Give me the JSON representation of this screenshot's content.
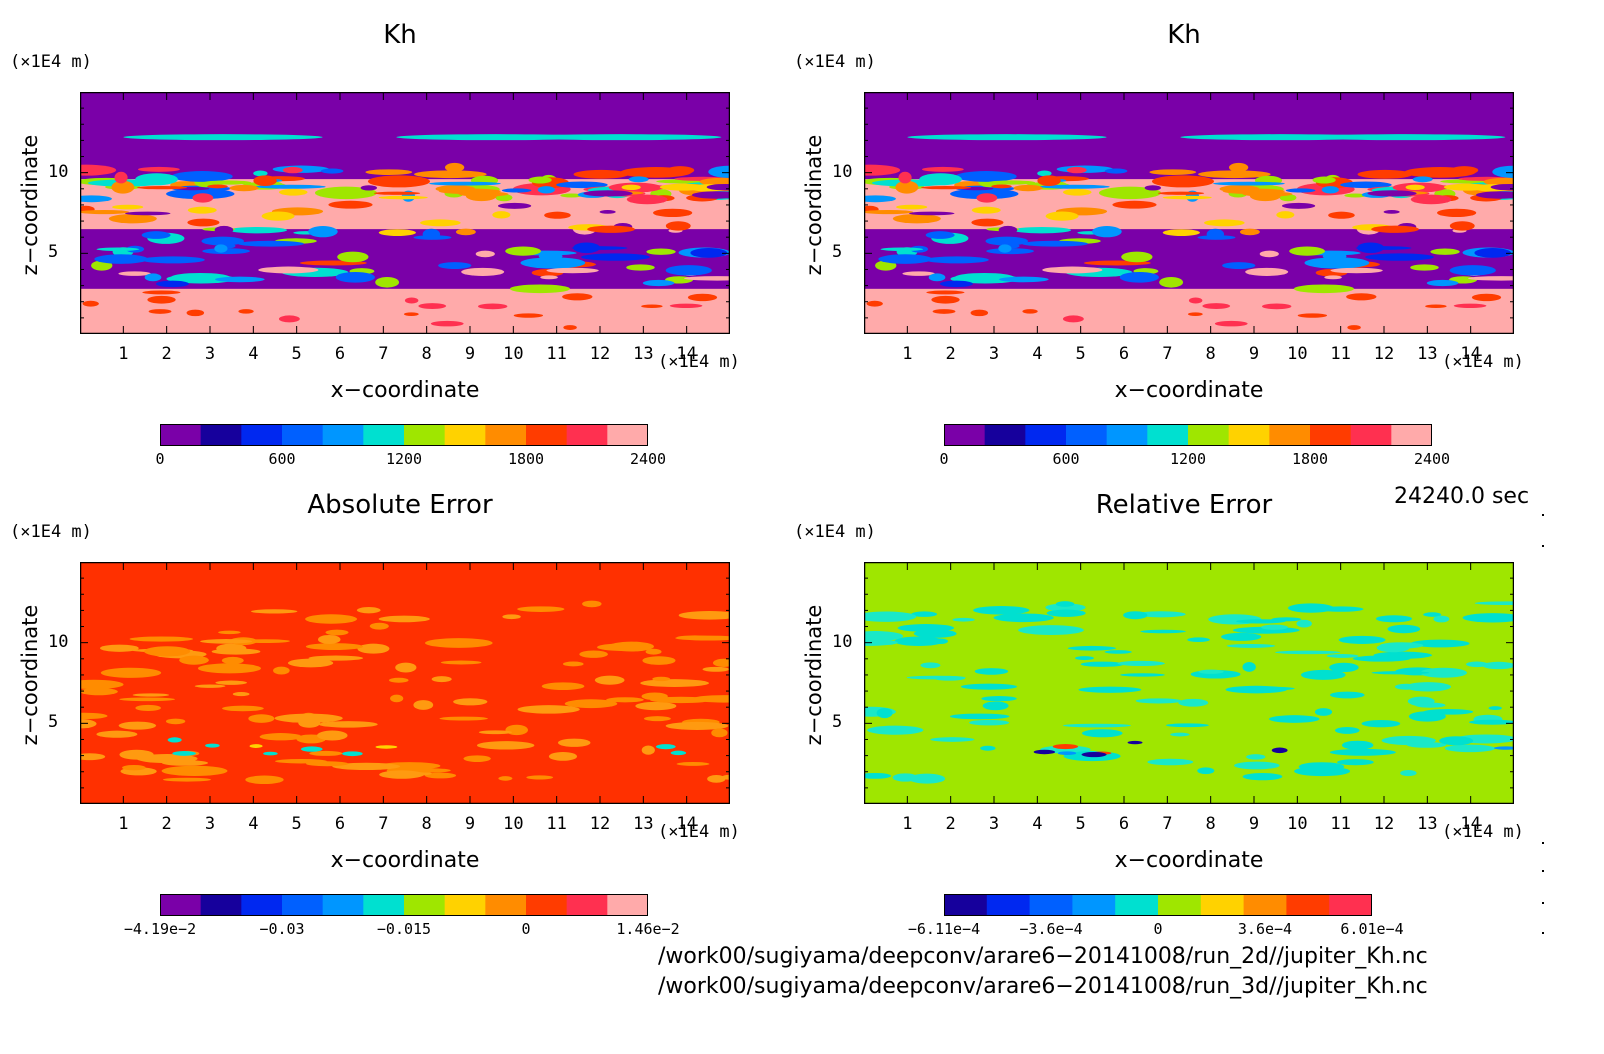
{
  "chart_data": [
    {
      "type": "heatmap",
      "title": "Kh",
      "xlabel": "x−coordinate",
      "ylabel": "z−coordinate",
      "x_unit": "(×1E4 m)",
      "y_unit": "(×1E4 m)",
      "xlim": [
        0,
        15
      ],
      "ylim": [
        0,
        15
      ],
      "xticks": [
        "1",
        "2",
        "3",
        "4",
        "5",
        "6",
        "7",
        "8",
        "9",
        "10",
        "11",
        "12",
        "13",
        "14"
      ],
      "yticks": [
        "5",
        "10"
      ],
      "colorbar_ticks": [
        "0",
        "600",
        "1200",
        "1800",
        "2400"
      ],
      "colorbar_colors": [
        "#7a00a8",
        "#16009c",
        "#0028f0",
        "#0060ff",
        "#0096ff",
        "#00e0d0",
        "#9fe600",
        "#ffd200",
        "#ff8c00",
        "#ff3c00",
        "#ff3050",
        "#ffaaaa"
      ]
    },
    {
      "type": "heatmap",
      "title": "Kh",
      "xlabel": "x−coordinate",
      "ylabel": "z−coordinate",
      "x_unit": "(×1E4 m)",
      "y_unit": "(×1E4 m)",
      "xlim": [
        0,
        15
      ],
      "ylim": [
        0,
        15
      ],
      "xticks": [
        "1",
        "2",
        "3",
        "4",
        "5",
        "6",
        "7",
        "8",
        "9",
        "10",
        "11",
        "12",
        "13",
        "14"
      ],
      "yticks": [
        "5",
        "10"
      ],
      "colorbar_ticks": [
        "0",
        "600",
        "1200",
        "1800",
        "2400"
      ],
      "colorbar_colors": [
        "#7a00a8",
        "#16009c",
        "#0028f0",
        "#0060ff",
        "#0096ff",
        "#00e0d0",
        "#9fe600",
        "#ffd200",
        "#ff8c00",
        "#ff3c00",
        "#ff3050",
        "#ffaaaa"
      ]
    },
    {
      "type": "heatmap",
      "title": "Absolute Error",
      "xlabel": "x−coordinate",
      "ylabel": "z−coordinate",
      "x_unit": "(×1E4 m)",
      "y_unit": "(×1E4 m)",
      "xlim": [
        0,
        15
      ],
      "ylim": [
        0,
        15
      ],
      "xticks": [
        "1",
        "2",
        "3",
        "4",
        "5",
        "6",
        "7",
        "8",
        "9",
        "10",
        "11",
        "12",
        "13",
        "14"
      ],
      "yticks": [
        "5",
        "10"
      ],
      "colorbar_ticks": [
        "−4.19e−2",
        "−0.03",
        "−0.015",
        "0",
        "1.46e−2"
      ],
      "colorbar_colors": [
        "#7a00a8",
        "#16009c",
        "#0028f0",
        "#0060ff",
        "#0096ff",
        "#00e0d0",
        "#9fe600",
        "#ffd200",
        "#ff8c00",
        "#ff3c00",
        "#ff3050",
        "#ffaaaa"
      ]
    },
    {
      "type": "heatmap",
      "title": "Relative Error",
      "xlabel": "x−coordinate",
      "ylabel": "z−coordinate",
      "x_unit": "(×1E4 m)",
      "y_unit": "(×1E4 m)",
      "xlim": [
        0,
        15
      ],
      "ylim": [
        0,
        15
      ],
      "xticks": [
        "1",
        "2",
        "3",
        "4",
        "5",
        "6",
        "7",
        "8",
        "9",
        "10",
        "11",
        "12",
        "13",
        "14"
      ],
      "yticks": [
        "5",
        "10"
      ],
      "colorbar_ticks": [
        "−6.11e−4",
        "−3.6e−4",
        "0",
        "3.6e−4",
        "6.01e−4"
      ],
      "colorbar_colors": [
        "#16009c",
        "#0028f0",
        "#0060ff",
        "#0096ff",
        "#00e0d0",
        "#9fe600",
        "#ffd200",
        "#ff8c00",
        "#ff3c00",
        "#ff3050"
      ]
    }
  ],
  "timestamp": "24240.0 sec",
  "file_paths": [
    "/work00/sugiyama/deepconv/arare6−20141008/run_2d//jupiter_Kh.nc",
    "/work00/sugiyama/deepconv/arare6−20141008/run_3d//jupiter_Kh.nc"
  ]
}
